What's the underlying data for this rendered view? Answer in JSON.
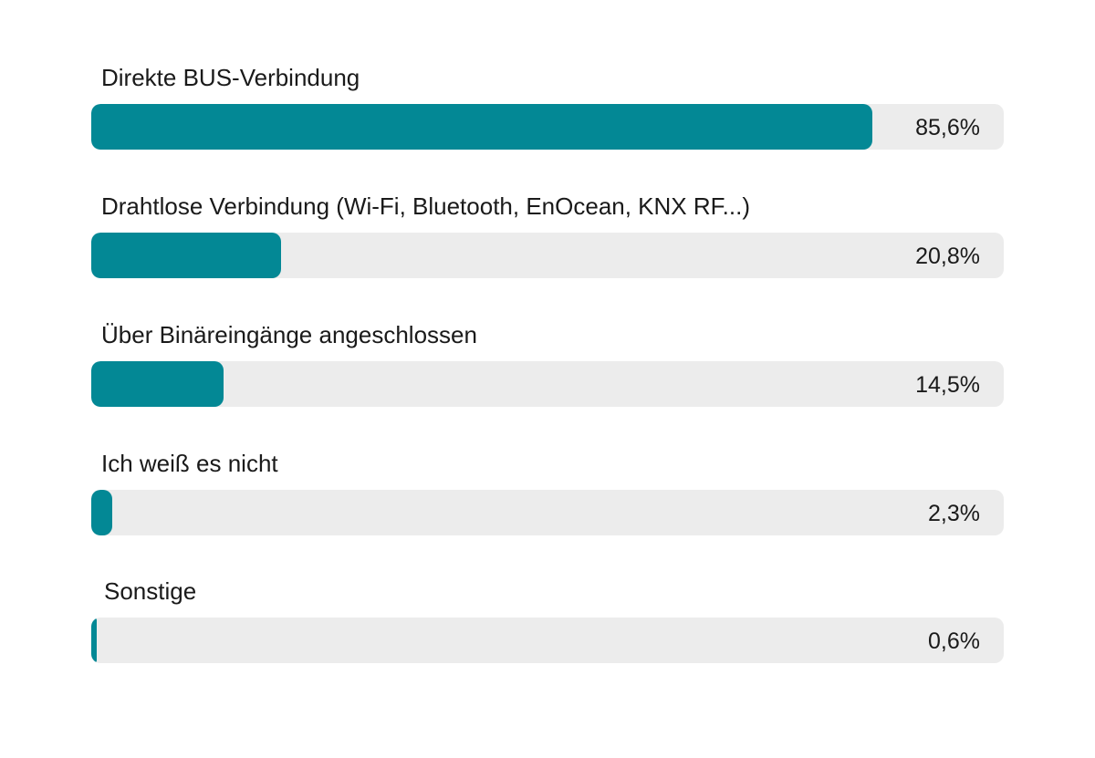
{
  "chart_data": {
    "type": "bar",
    "orientation": "horizontal",
    "categories": [
      "Direkte BUS-Verbindung",
      "Drahtlose Verbindung (Wi-Fi, Bluetooth, EnOcean, KNX RF...)",
      "Über Binäreingänge angeschlossen",
      "Ich weiß es nicht",
      "Sonstige"
    ],
    "values": [
      85.6,
      20.8,
      14.5,
      2.3,
      0.6
    ],
    "value_labels": [
      "85,6%",
      "20,8%",
      "14,5%",
      "2,3%",
      "0,6%"
    ],
    "xlim": [
      0,
      100
    ],
    "grid": false,
    "legend": "none",
    "colors": {
      "bar": "#038895",
      "track": "#ececec",
      "text": "#1a1a1a"
    }
  }
}
